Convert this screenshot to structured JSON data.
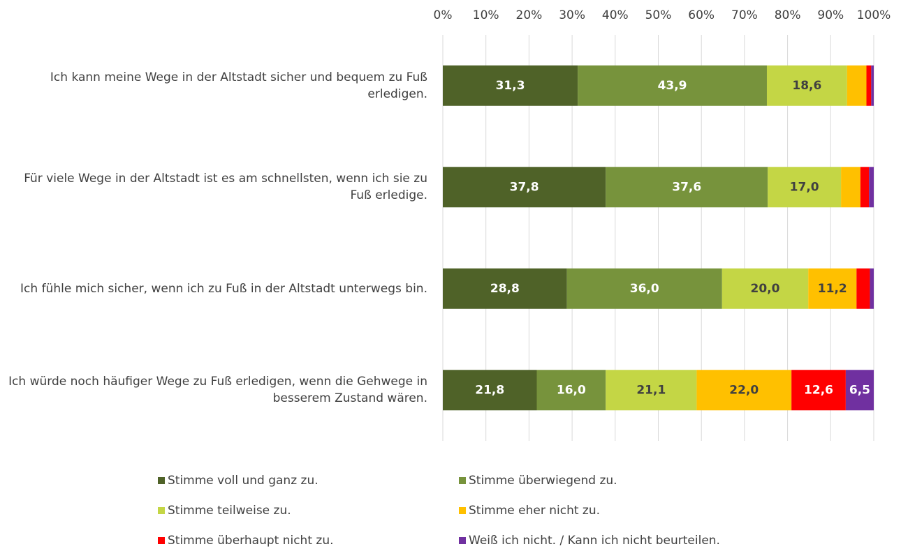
{
  "chart_data": {
    "type": "stacked_barh",
    "categories": [
      "Ich kann meine Wege in der Altstadt sicher und bequem zu Fuß erledigen.",
      "Für viele Wege in der Altstadt ist es am schnellsten, wenn ich sie zu Fuß erledige.",
      "Ich fühle mich sicher, wenn ich zu Fuß in der Altstadt unterwegs bin.",
      "Ich würde noch häufiger Wege zu Fuß erledigen, wenn die Gehwege in besserem Zustand wären."
    ],
    "series": [
      {
        "name": "Stimme voll und ganz zu.",
        "color": "#4f6228",
        "label_color": "#ffffff",
        "values": [
          31.3,
          37.8,
          28.8,
          21.8
        ],
        "value_labels": [
          "31,3",
          "37,8",
          "28,8",
          "21,8"
        ]
      },
      {
        "name": "Stimme überwiegend zu.",
        "color": "#77933c",
        "label_color": "#ffffff",
        "values": [
          43.9,
          37.6,
          36.0,
          16.0
        ],
        "value_labels": [
          "43,9",
          "37,6",
          "36,0",
          "16,0"
        ]
      },
      {
        "name": "Stimme teilweise zu.",
        "color": "#c4d645",
        "label_color": "#404040",
        "values": [
          18.6,
          17.0,
          20.0,
          21.1
        ],
        "value_labels": [
          "18,6",
          "17,0",
          "20,0",
          "21,1"
        ]
      },
      {
        "name": "Stimme eher nicht zu.",
        "color": "#ffc000",
        "label_color": "#404040",
        "values": [
          4.5,
          4.5,
          11.2,
          22.0
        ],
        "value_labels": [
          null,
          null,
          "11,2",
          "22,0"
        ]
      },
      {
        "name": "Stimme überhaupt nicht zu.",
        "color": "#ff0000",
        "label_color": "#ffffff",
        "values": [
          1.1,
          2.0,
          3.1,
          12.6
        ],
        "value_labels": [
          null,
          null,
          null,
          "12,6"
        ]
      },
      {
        "name": "Weiß ich nicht. / Kann ich nicht beurteilen.",
        "color": "#7030a0",
        "label_color": "#ffffff",
        "values": [
          0.6,
          1.1,
          0.9,
          6.5
        ],
        "value_labels": [
          null,
          null,
          null,
          "6,5"
        ]
      }
    ],
    "xlim": [
      0,
      100
    ],
    "xticks": [
      {
        "value": 0,
        "label": "0%"
      },
      {
        "value": 10,
        "label": "10%"
      },
      {
        "value": 20,
        "label": "20%"
      },
      {
        "value": 30,
        "label": "30%"
      },
      {
        "value": 40,
        "label": "40%"
      },
      {
        "value": 50,
        "label": "50%"
      },
      {
        "value": 60,
        "label": "60%"
      },
      {
        "value": 70,
        "label": "70%"
      },
      {
        "value": 80,
        "label": "80%"
      },
      {
        "value": 90,
        "label": "90%"
      },
      {
        "value": 100,
        "label": "100%"
      }
    ],
    "grid": true,
    "legend": "bottom"
  }
}
